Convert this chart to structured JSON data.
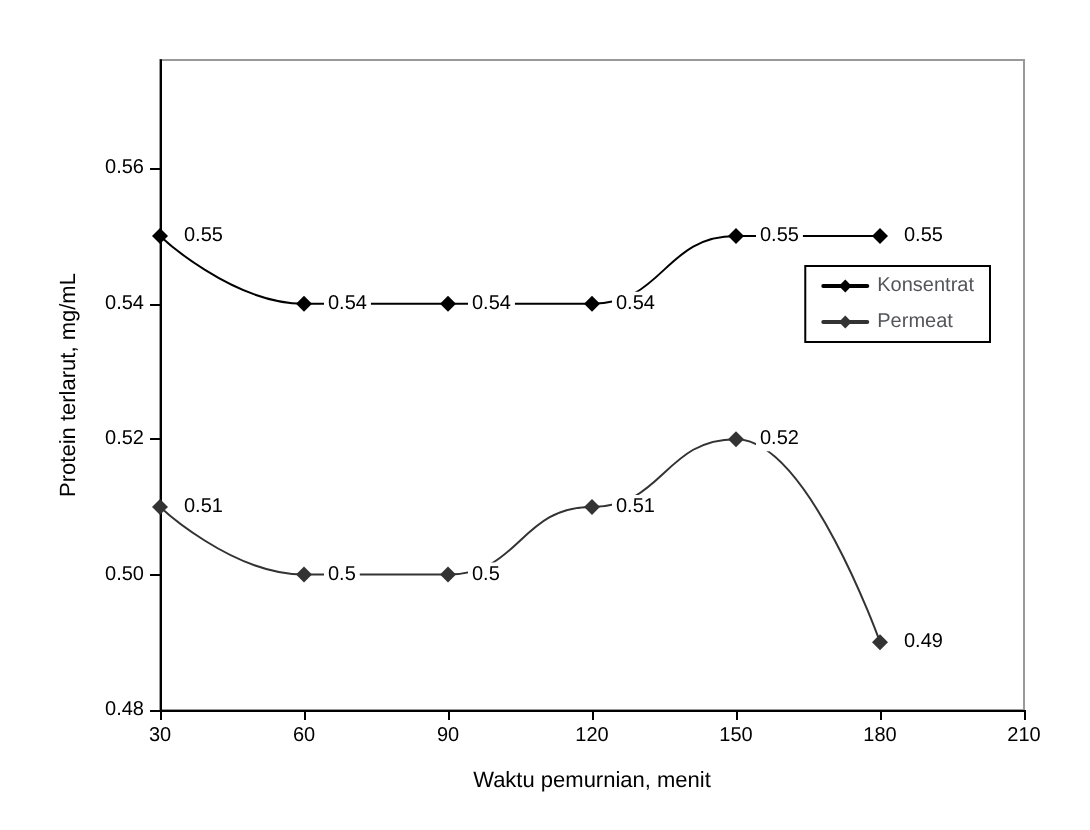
{
  "chart_data": {
    "type": "line",
    "xlabel": "Waktu pemurnian, menit",
    "ylabel": "Protein terlarut, mg/mL",
    "x": [
      30,
      60,
      90,
      120,
      150,
      180
    ],
    "series": [
      {
        "name": "Konsentrat",
        "color": "#000000",
        "values": [
          0.55,
          0.54,
          0.54,
          0.54,
          0.55,
          0.55
        ]
      },
      {
        "name": "Permeat",
        "color": "#333333",
        "values": [
          0.51,
          0.5,
          0.5,
          0.51,
          0.52,
          0.49
        ]
      }
    ],
    "xlim": [
      30,
      210
    ],
    "xticks": [
      30,
      60,
      90,
      120,
      150,
      180,
      210
    ],
    "ylim": [
      0.48,
      0.576
    ],
    "yticks": [
      "0.48",
      "0.50",
      "0.52",
      "0.54",
      "0.56"
    ],
    "data_labels": true,
    "marker": "diamond",
    "line_style": "solid",
    "grid": false,
    "legend": "top right"
  }
}
